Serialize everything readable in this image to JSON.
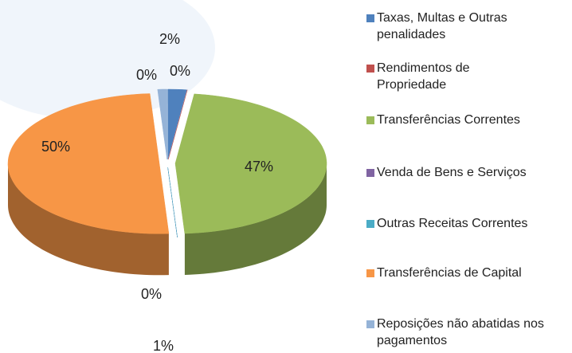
{
  "chart_data": {
    "type": "pie",
    "categories": [
      "Taxas, Multas e Outras penalidades",
      "Rendimentos de Propriedade",
      "Transferências Correntes",
      "Venda de Bens e Serviços",
      "Outras Receitas Correntes",
      "Transferências de Capital",
      "Reposições não abatidas nos pagamentos"
    ],
    "values": [
      2,
      0,
      47,
      0,
      0,
      50,
      1
    ],
    "value_labels": [
      "2%",
      "0%",
      "47%",
      "0%",
      "0%",
      "50%",
      "1%"
    ],
    "colors": [
      "#4f81bd",
      "#c0504d",
      "#9bbb59",
      "#8064a2",
      "#4bacc6",
      "#f79646",
      "#95b3d7"
    ],
    "legend": "right"
  }
}
